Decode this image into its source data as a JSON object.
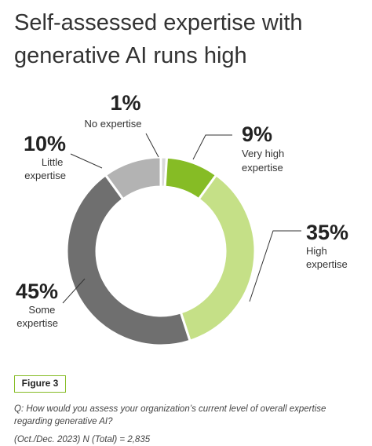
{
  "title": "Self-assessed expertise with generative AI runs high",
  "figure_label": "Figure 3",
  "question": "Q: How would you assess your organization’s current level of overall expertise regarding generative AI?",
  "note": "(Oct./Dec. 2023) N (Total) = 2,835",
  "chart_data": {
    "type": "pie",
    "donut": true,
    "title": "Self-assessed expertise with generative AI runs high",
    "slices": [
      {
        "label": "No expertise",
        "pct_label": "1%",
        "value": 1,
        "color": "#d9d9d9"
      },
      {
        "label": "Very high expertise",
        "pct_label": "9%",
        "value": 9,
        "color": "#86bc25"
      },
      {
        "label": "High expertise",
        "pct_label": "35%",
        "value": 35,
        "color": "#c5e087"
      },
      {
        "label": "Some expertise",
        "pct_label": "45%",
        "value": 45,
        "color": "#6f6f6f"
      },
      {
        "label": "Little expertise",
        "pct_label": "10%",
        "value": 10,
        "color": "#b3b3b3"
      }
    ],
    "order": "clockwise from top"
  }
}
